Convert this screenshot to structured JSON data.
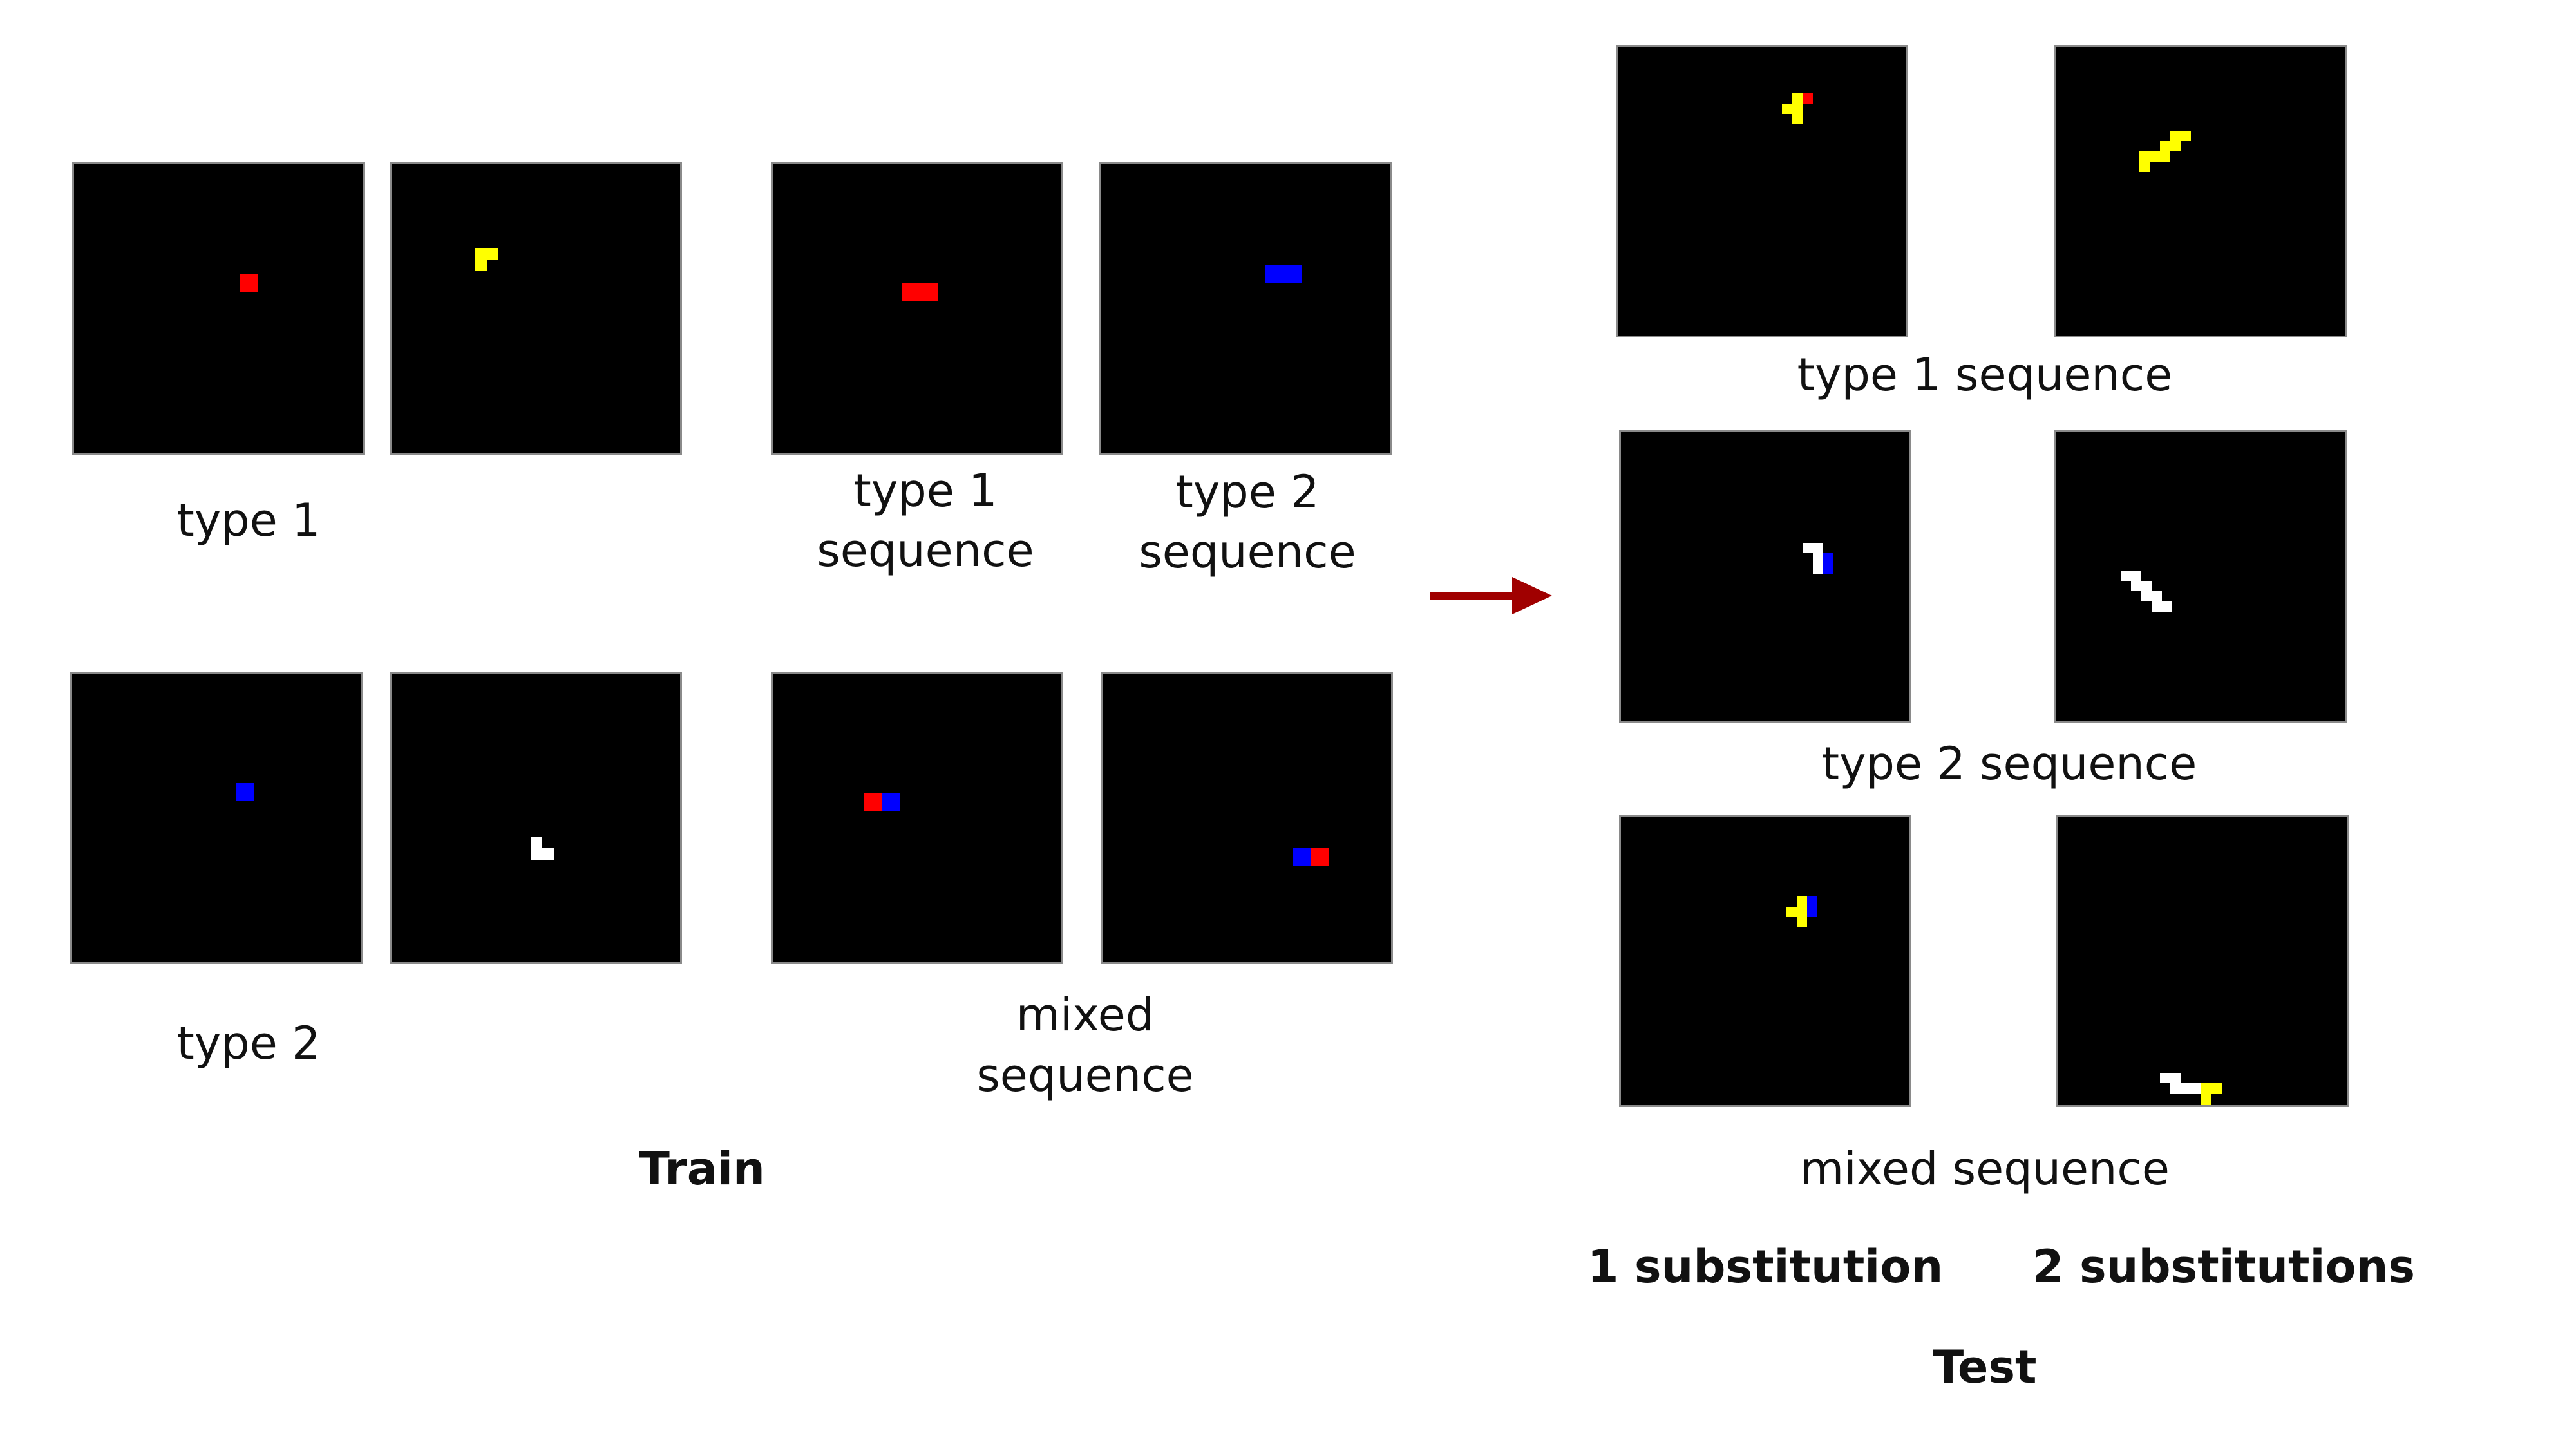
{
  "colors": {
    "red": "#ff0000",
    "yellow": "#ffff00",
    "blue": "#0000ff",
    "white": "#ffffff",
    "arrow": "#a00000",
    "panel": "#000000"
  },
  "labels": {
    "train_type1": "type 1",
    "train_type2": "type 2",
    "train_type1_seq_line1": "type 1",
    "train_type1_seq_line2": "sequence",
    "train_type2_seq_line1": "type 2",
    "train_type2_seq_line2": "sequence",
    "train_mixed_seq_line1": "mixed",
    "train_mixed_seq_line2": "sequence",
    "train_title": "Train",
    "test_type1_seq": "type 1 sequence",
    "test_type2_seq": "type 2 sequence",
    "test_mixed_seq": "mixed sequence",
    "one_sub": "1 substitution",
    "two_sub": "2 substitutions",
    "test_title": "Test"
  },
  "arrow_icon": "right-arrow-icon",
  "panels": {
    "train_type1_a": [
      {
        "color": "red",
        "cells": [
          [
            0,
            0
          ]
        ]
      }
    ],
    "train_type1_b": [
      {
        "color": "yellow",
        "cells": [
          [
            0,
            0
          ],
          [
            1,
            0
          ],
          [
            0,
            1
          ]
        ]
      }
    ],
    "train_type1_seq": [
      {
        "color": "red",
        "cells": [
          [
            0,
            0
          ],
          [
            1,
            0
          ]
        ]
      }
    ],
    "train_type2_seq": [
      {
        "color": "blue",
        "cells": [
          [
            0,
            0
          ],
          [
            1,
            0
          ]
        ]
      }
    ],
    "train_type2_a": [
      {
        "color": "blue",
        "cells": [
          [
            0,
            0
          ]
        ]
      }
    ],
    "train_type2_b": [
      {
        "color": "white",
        "cells": [
          [
            0,
            0
          ],
          [
            0,
            1
          ],
          [
            1,
            1
          ]
        ]
      }
    ],
    "train_mixed_a": [
      {
        "color": "red",
        "cells": [
          [
            0,
            0
          ]
        ]
      },
      {
        "color": "blue",
        "cells": [
          [
            1,
            0
          ]
        ]
      }
    ],
    "train_mixed_b": [
      {
        "color": "blue",
        "cells": [
          [
            0,
            0
          ]
        ]
      },
      {
        "color": "red",
        "cells": [
          [
            1,
            0
          ]
        ]
      }
    ],
    "test_type1_one": [
      {
        "color": "yellow",
        "cells": [
          [
            1,
            0
          ],
          [
            0,
            1
          ],
          [
            1,
            1
          ],
          [
            1,
            2
          ]
        ]
      },
      {
        "color": "red",
        "cells": [
          [
            2,
            0
          ]
        ]
      }
    ],
    "test_type1_two": [
      {
        "color": "yellow",
        "cells": [
          [
            3,
            0
          ],
          [
            4,
            0
          ],
          [
            2,
            1
          ],
          [
            3,
            1
          ],
          [
            0,
            2
          ],
          [
            1,
            2
          ],
          [
            2,
            2
          ],
          [
            0,
            3
          ]
        ]
      }
    ],
    "test_type2_one": [
      {
        "color": "white",
        "cells": [
          [
            0,
            0
          ],
          [
            1,
            0
          ],
          [
            1,
            1
          ],
          [
            1,
            2
          ]
        ]
      },
      {
        "color": "blue",
        "cells": [
          [
            2,
            1
          ],
          [
            2,
            2
          ]
        ]
      }
    ],
    "test_type2_two": [
      {
        "color": "white",
        "cells": [
          [
            0,
            0
          ],
          [
            1,
            0
          ],
          [
            1,
            1
          ],
          [
            2,
            1
          ],
          [
            2,
            2
          ],
          [
            3,
            2
          ],
          [
            3,
            3
          ],
          [
            4,
            3
          ]
        ]
      }
    ],
    "test_mixed_one": [
      {
        "color": "yellow",
        "cells": [
          [
            1,
            0
          ],
          [
            0,
            1
          ],
          [
            1,
            1
          ],
          [
            1,
            2
          ]
        ]
      },
      {
        "color": "blue",
        "cells": [
          [
            2,
            0
          ],
          [
            2,
            1
          ]
        ]
      }
    ],
    "test_mixed_two": [
      {
        "color": "white",
        "cells": [
          [
            0,
            0
          ],
          [
            1,
            0
          ],
          [
            1,
            1
          ],
          [
            2,
            1
          ],
          [
            3,
            1
          ]
        ]
      },
      {
        "color": "yellow",
        "cells": [
          [
            4,
            1
          ],
          [
            5,
            1
          ],
          [
            4,
            2
          ],
          [
            4,
            3
          ]
        ]
      }
    ]
  }
}
